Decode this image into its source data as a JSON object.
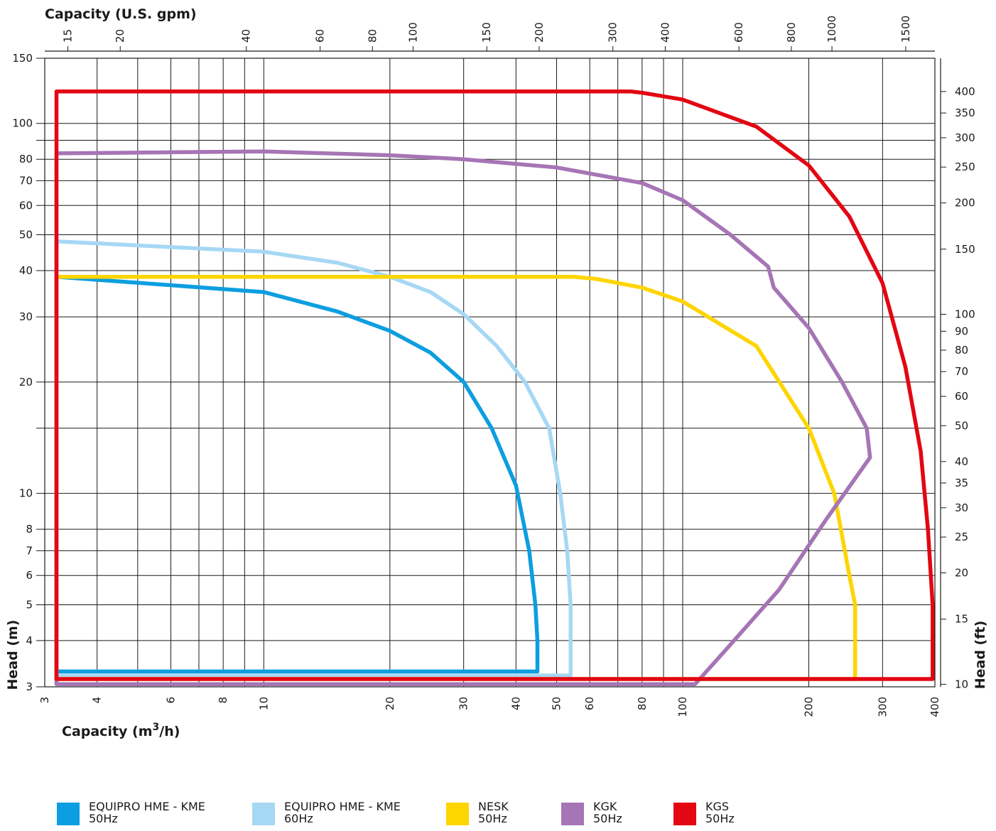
{
  "chart_data": {
    "type": "line",
    "xlabel": "Capacity (m3/h)",
    "xlabel_main": "Capacity (m",
    "xlabel_sup": "3",
    "xlabel_tail": "/h)",
    "x_top_label": "Capacity (U.S. gpm)",
    "ylabel": "Head (m)",
    "y_right_label": "Head (ft)",
    "x_scale": "log",
    "y_scale": "log",
    "xlim": [
      3,
      400
    ],
    "ylim": [
      3,
      150
    ],
    "grid": true,
    "legend_position": "bottom",
    "x_ticks": [
      3,
      4,
      6,
      8,
      10,
      20,
      30,
      40,
      50,
      60,
      80,
      100,
      200,
      300,
      400
    ],
    "x_grid": [
      3,
      4,
      5,
      6,
      7,
      8,
      9,
      10,
      20,
      30,
      40,
      50,
      60,
      70,
      80,
      90,
      100,
      200,
      300,
      400
    ],
    "y_ticks": [
      3,
      4,
      5,
      6,
      7,
      8,
      10,
      20,
      30,
      40,
      50,
      60,
      70,
      80,
      100,
      150
    ],
    "y_grid": [
      3,
      4,
      5,
      6,
      7,
      8,
      10,
      15,
      20,
      30,
      40,
      50,
      60,
      70,
      80,
      90,
      100,
      150
    ],
    "top_ticks_gpm": [
      15,
      20,
      40,
      60,
      80,
      100,
      150,
      200,
      300,
      400,
      600,
      800,
      1000,
      1500
    ],
    "right_ticks_ft": [
      10,
      15,
      20,
      25,
      30,
      35,
      40,
      50,
      60,
      70,
      80,
      90,
      100,
      150,
      200,
      250,
      300,
      350,
      400
    ],
    "series": [
      {
        "name": "EQUIPRO HME - KME 50Hz",
        "legend_lines": [
          "EQUIPRO HME - KME",
          "50Hz"
        ],
        "color": "#0c9ee0",
        "points": [
          [
            3.2,
            3.3
          ],
          [
            3.2,
            38.5
          ],
          [
            10,
            35
          ],
          [
            15,
            31
          ],
          [
            20,
            27.5
          ],
          [
            25,
            24
          ],
          [
            30,
            20
          ],
          [
            35,
            15
          ],
          [
            40,
            10.5
          ],
          [
            43,
            7
          ],
          [
            44.5,
            5
          ],
          [
            45,
            4
          ],
          [
            45,
            3.3
          ],
          [
            3.2,
            3.3
          ]
        ]
      },
      {
        "name": "EQUIPRO HME - KME 60Hz",
        "legend_lines": [
          "EQUIPRO HME - KME",
          "60Hz"
        ],
        "color": "#a6d8f4",
        "points": [
          [
            3.2,
            3.22
          ],
          [
            3.2,
            48
          ],
          [
            10,
            45
          ],
          [
            15,
            42
          ],
          [
            20,
            38.5
          ],
          [
            25,
            35
          ],
          [
            30,
            30.5
          ],
          [
            36,
            25
          ],
          [
            42,
            20
          ],
          [
            48,
            15
          ],
          [
            51,
            10
          ],
          [
            53,
            7
          ],
          [
            54,
            5
          ],
          [
            54,
            3.22
          ],
          [
            3.2,
            3.22
          ]
        ]
      },
      {
        "name": "NESK 50Hz",
        "legend_lines": [
          "NESK",
          "50Hz"
        ],
        "color": "#fed500",
        "points": [
          [
            3.2,
            3.15
          ],
          [
            3.2,
            38.5
          ],
          [
            55,
            38.5
          ],
          [
            62,
            38
          ],
          [
            80,
            36
          ],
          [
            100,
            33
          ],
          [
            150,
            25
          ],
          [
            200,
            15
          ],
          [
            230,
            10
          ],
          [
            250,
            6
          ],
          [
            258,
            5
          ],
          [
            258,
            3.15
          ],
          [
            3.2,
            3.15
          ]
        ]
      },
      {
        "name": "KGK 50Hz",
        "legend_lines": [
          "KGK",
          "50Hz"
        ],
        "color": "#a675b5",
        "points": [
          [
            3.2,
            3.05
          ],
          [
            3.2,
            83
          ],
          [
            10,
            84
          ],
          [
            20,
            82
          ],
          [
            30,
            80
          ],
          [
            50,
            76
          ],
          [
            80,
            69
          ],
          [
            100,
            62
          ],
          [
            130,
            50
          ],
          [
            160,
            41
          ],
          [
            165,
            36
          ],
          [
            200,
            28
          ],
          [
            240,
            20
          ],
          [
            275,
            15
          ],
          [
            280,
            12.5
          ],
          [
            220,
            8.5
          ],
          [
            170,
            5.5
          ],
          [
            130,
            3.9
          ],
          [
            107,
            3.05
          ],
          [
            3.2,
            3.05
          ]
        ]
      },
      {
        "name": "KGS 50Hz",
        "legend_lines": [
          "KGS",
          "50Hz"
        ],
        "color": "#e30613",
        "points": [
          [
            3.2,
            3.15
          ],
          [
            3.2,
            122
          ],
          [
            75,
            122
          ],
          [
            80,
            121
          ],
          [
            100,
            116
          ],
          [
            150,
            98
          ],
          [
            200,
            77
          ],
          [
            250,
            56
          ],
          [
            300,
            37
          ],
          [
            340,
            22
          ],
          [
            370,
            13
          ],
          [
            385,
            8
          ],
          [
            395,
            5
          ],
          [
            395,
            3.15
          ],
          [
            3.2,
            3.15
          ]
        ]
      }
    ]
  }
}
